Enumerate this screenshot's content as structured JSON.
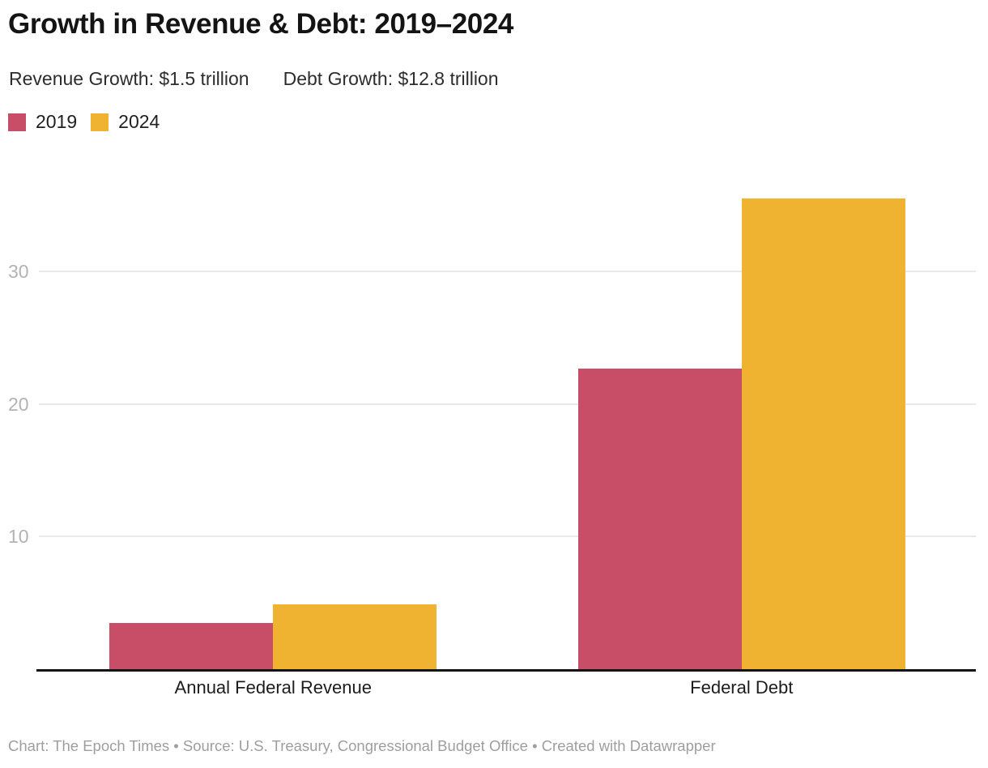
{
  "header": {
    "title": "Growth in Revenue & Debt: 2019–2024",
    "subtitle_left": "Revenue Growth: $1.5 trillion",
    "subtitle_right": "Debt Growth: $12.8 trillion"
  },
  "chart_data": {
    "type": "bar",
    "title": "Growth in Revenue & Debt: 2019–2024",
    "categories": [
      "Annual Federal Revenue",
      "Federal Debt"
    ],
    "series": [
      {
        "name": "2019",
        "color": "#c84d66",
        "values": [
          3.5,
          22.7
        ]
      },
      {
        "name": "2024",
        "color": "#f0b231",
        "values": [
          4.9,
          35.5
        ]
      }
    ],
    "xlabel": "",
    "ylabel": "",
    "yticks": [
      10,
      20,
      30
    ],
    "ylim": [
      0,
      39.5
    ],
    "grid": "horizontal",
    "legend_position": "top-left",
    "values_in": "trillions"
  },
  "footer": {
    "text": "Chart: The Epoch Times • Source: U.S. Treasury, Congressional Budget Office • Created with Datawrapper"
  }
}
